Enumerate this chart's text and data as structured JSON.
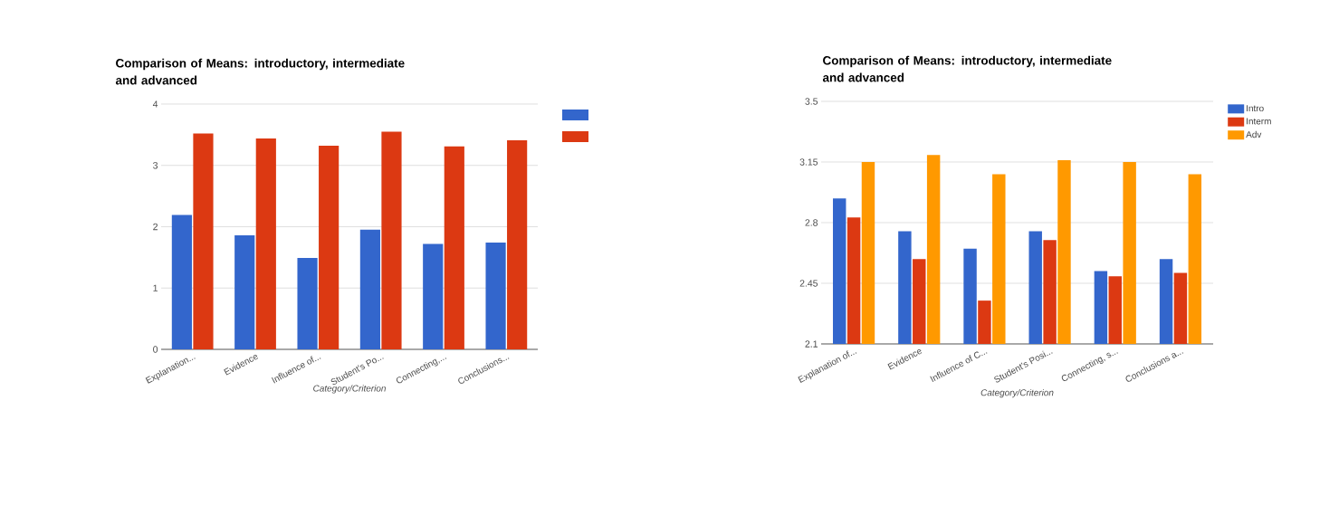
{
  "chart_data": [
    {
      "type": "bar",
      "title": "Comparison of Means: introductory, intermediate and advanced",
      "xlabel": "Category/Criterion",
      "categories": [
        "Explanation...",
        "Evidence",
        "Influence of...",
        "Student's Po...",
        "Connecting,...",
        "Conclusions..."
      ],
      "series": [
        {
          "color": "#3366cc",
          "values": [
            2.19,
            1.86,
            1.49,
            1.95,
            1.72,
            1.74
          ]
        },
        {
          "color": "#dc3912",
          "values": [
            3.52,
            3.44,
            3.32,
            3.55,
            3.31,
            3.41
          ]
        }
      ],
      "ylim": [
        0,
        4
      ],
      "yticks": [
        0,
        1,
        2,
        3,
        4
      ],
      "grid": "y",
      "legend": "top right"
    },
    {
      "type": "bar",
      "title": "Comparison of Means: introductory, intermediate and advanced",
      "xlabel": "Category/Criterion",
      "categories": [
        "Explanation of...",
        "Evidence",
        "Influence of C...",
        "Student's Posi...",
        "Connecting, s...",
        "Conclusions a..."
      ],
      "series": [
        {
          "name": "Intro",
          "color": "#3366cc",
          "values": [
            2.94,
            2.75,
            2.65,
            2.75,
            2.52,
            2.59
          ]
        },
        {
          "name": "Interm",
          "color": "#dc3912",
          "values": [
            2.83,
            2.59,
            2.35,
            2.7,
            2.49,
            2.51
          ]
        },
        {
          "name": "Adv",
          "color": "#ff9900",
          "values": [
            3.15,
            3.19,
            3.08,
            3.16,
            3.15,
            3.08
          ]
        }
      ],
      "ylim": [
        2.1,
        3.5
      ],
      "yticks": [
        2.1,
        2.45,
        2.8,
        3.15,
        3.5
      ],
      "grid": "y",
      "legend": "top right"
    }
  ]
}
